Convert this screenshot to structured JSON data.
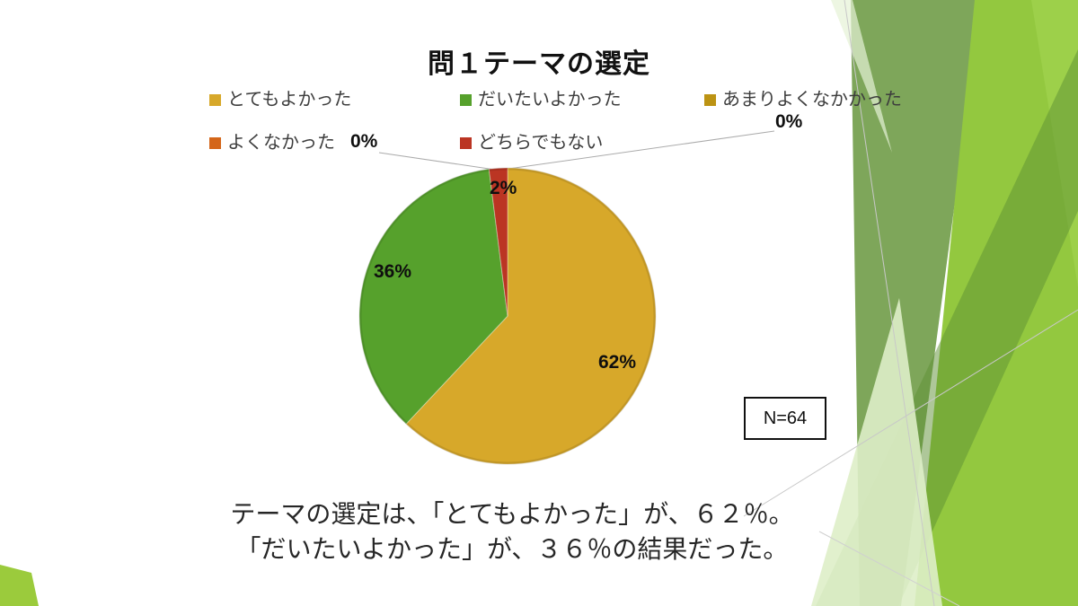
{
  "slide": {
    "title": "問１テーマの選定",
    "note_line1": "テーマの選定は、「とてもよかった」が、６２％。",
    "note_line2": "「だいたいよかった」が、３６％の結果だった。"
  },
  "chart_data": {
    "type": "pie",
    "title": "問１テーマの選定",
    "categories": [
      "とてもよかった",
      "だいたいよかった",
      "あまりよくなかかった",
      "よくなかった",
      "どちらでもない"
    ],
    "values": [
      62,
      36,
      0,
      0,
      2
    ],
    "unit": "%",
    "labels": [
      "62%",
      "36%",
      "0%",
      "0%",
      "2%"
    ],
    "colors": [
      "#D7A82A",
      "#56A12C",
      "#BC9313",
      "#D4661A",
      "#BB3523"
    ],
    "legend_position": "top",
    "start_angle": "12 o'clock, clockwise",
    "n_label": "N=64"
  },
  "theme": {
    "accent_green_bright": "#93C83F",
    "accent_green_olive": "#7EA65A",
    "accent_green_dark": "#5E8F33",
    "accent_green_pale": "#DEEEC8",
    "leader_line_color": "#ABABAB"
  }
}
